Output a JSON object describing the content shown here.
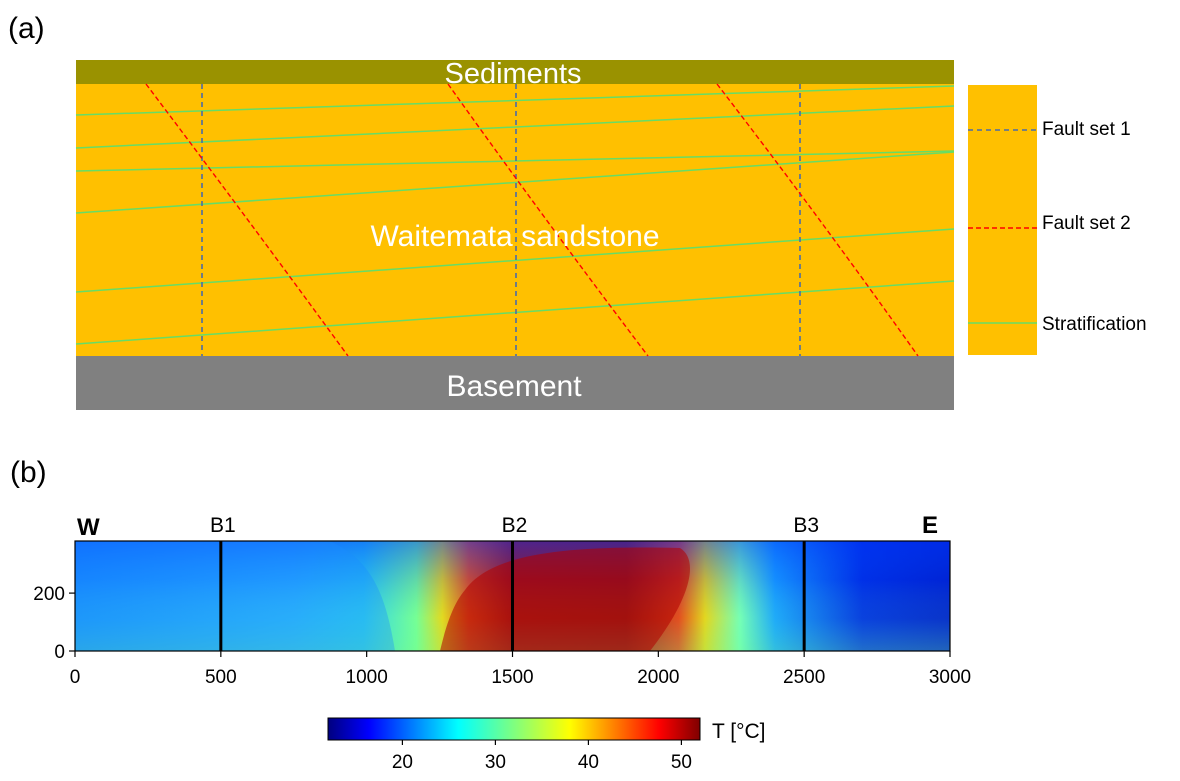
{
  "panel_a": {
    "label": "(a)",
    "layers": {
      "sediments": {
        "label": "Sediments",
        "color": "#9a9200"
      },
      "sandstone": {
        "label": "Waitemata sandstone",
        "color": "#ffc000"
      },
      "basement": {
        "label": "Basement",
        "color": "#808080"
      }
    },
    "legend": [
      {
        "label": "Fault set 1",
        "color": "#4a6ba8",
        "style": "dashed"
      },
      {
        "label": "Fault set 2",
        "color": "#ff0000",
        "style": "dashed"
      },
      {
        "label": "Stratification",
        "color": "#66dd66",
        "style": "solid"
      }
    ]
  },
  "panel_b": {
    "label": "(b)",
    "west_label": "W",
    "east_label": "E",
    "boreholes": [
      {
        "label": "B1",
        "x": 500
      },
      {
        "label": "B2",
        "x": 1500
      },
      {
        "label": "B3",
        "x": 2500
      }
    ],
    "chart_data": {
      "type": "heatmap",
      "xlim": [
        0,
        3000
      ],
      "ylim": [
        0,
        380
      ],
      "x_ticks": [
        0,
        500,
        1000,
        1500,
        2000,
        2500,
        3000
      ],
      "y_ticks": [
        0,
        200
      ],
      "colorbar": {
        "label": "T [°C]",
        "range": [
          12,
          52
        ],
        "ticks": [
          20,
          30,
          40,
          50
        ],
        "colormap": "jet"
      }
    }
  }
}
